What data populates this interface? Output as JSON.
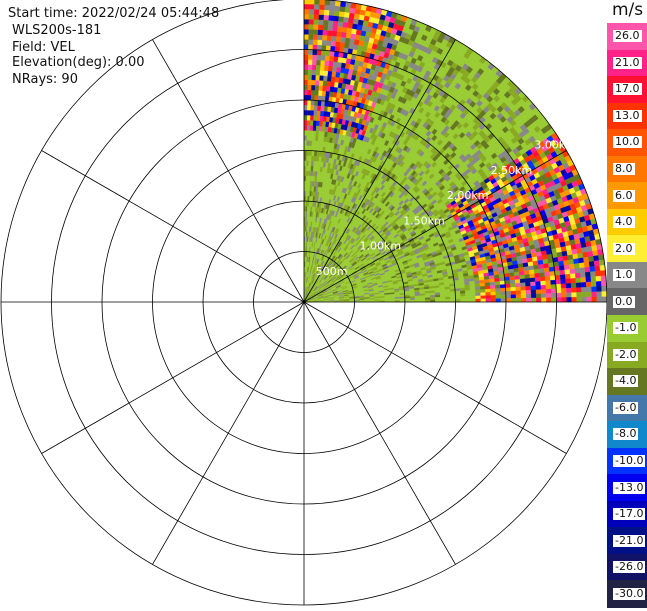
{
  "header": {
    "start_time": "Start time: 2022/02/24 05:44:48",
    "station": "WLS200s-181",
    "field": "Field: VEL",
    "elevation": "Elevation(deg): 0.00",
    "nrays": "NRays: 90"
  },
  "colorbar": {
    "unit": "m/s",
    "ticks": [
      "26.0",
      "21.0",
      "17.0",
      "13.0",
      "10.0",
      "8.0",
      "6.0",
      "4.0",
      "2.0",
      "1.0",
      "0.0",
      "-1.0",
      "-2.0",
      "-4.0",
      "-6.0",
      "-8.0",
      "-10.0",
      "-13.0",
      "-17.0",
      "-21.0",
      "-26.0",
      "-30.0"
    ],
    "colors": [
      "#ff55aa",
      "#ff2288",
      "#ff1133",
      "#ff3300",
      "#ff5500",
      "#ff7700",
      "#ff9900",
      "#ffcc00",
      "#ffee33",
      "#888888",
      "#666666",
      "#99cc33",
      "#88aa22",
      "#667722",
      "#4477aa",
      "#1188cc",
      "#0033ff",
      "#0000ee",
      "#0000bb",
      "#001188",
      "#111166",
      "#222244"
    ]
  },
  "chart_data": {
    "type": "polar-ppi",
    "range_rings_labels": [
      "500m",
      "1.00km",
      "1.50km",
      "2.00km",
      "2.50km",
      "3.00km"
    ],
    "range_rings_km": [
      0.5,
      1.0,
      1.5,
      2.0,
      2.5,
      3.0
    ],
    "azimuth_spokes_deg": [
      0,
      30,
      60,
      90,
      120,
      150,
      180,
      210,
      240,
      270,
      300,
      330
    ],
    "max_range_km": 3.0,
    "sector_with_data_deg": [
      0,
      90
    ],
    "dominant_values_m_s": [
      -2.0,
      -4.0,
      0.0,
      1.0,
      26.0,
      -17.0
    ],
    "colors": {
      "ring": "#000000",
      "label": "#ffffff"
    }
  }
}
